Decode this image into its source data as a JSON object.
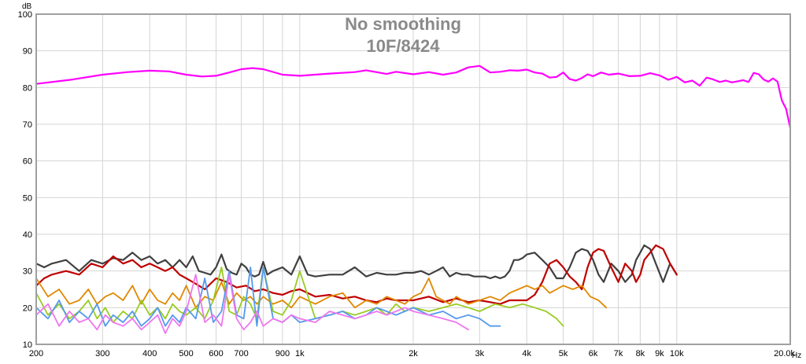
{
  "chart_data": {
    "type": "line",
    "title": "No smoothing",
    "subtitle": "10F/8424",
    "xlabel": "Hz",
    "ylabel": "dB",
    "xscale": "log",
    "xlim": [
      200,
      20000
    ],
    "ylim": [
      10,
      100
    ],
    "grid": true,
    "y_ticks": [
      "10",
      "20",
      "30",
      "40",
      "50",
      "60",
      "70",
      "80",
      "90",
      "100"
    ],
    "x_ticks": [
      {
        "v": 200,
        "label": "200"
      },
      {
        "v": 300,
        "label": "300"
      },
      {
        "v": 400,
        "label": "400"
      },
      {
        "v": 500,
        "label": "500"
      },
      {
        "v": 600,
        "label": "600"
      },
      {
        "v": 700,
        "label": "700"
      },
      {
        "v": 900,
        "label": "900"
      },
      {
        "v": 1000,
        "label": "1k"
      },
      {
        "v": 2000,
        "label": "2k"
      },
      {
        "v": 3000,
        "label": "3k"
      },
      {
        "v": 4000,
        "label": "4k"
      },
      {
        "v": 5000,
        "label": "5k"
      },
      {
        "v": 6000,
        "label": "6k"
      },
      {
        "v": 7000,
        "label": "7k"
      },
      {
        "v": 8000,
        "label": "8k"
      },
      {
        "v": 9000,
        "label": "9k"
      },
      {
        "v": 10000,
        "label": "10k"
      },
      {
        "v": 20000,
        "label": "20.0k"
      }
    ],
    "x_gridlines": [
      200,
      300,
      400,
      500,
      600,
      700,
      800,
      900,
      1000,
      2000,
      3000,
      4000,
      5000,
      6000,
      7000,
      8000,
      9000,
      10000,
      20000
    ],
    "series": [
      {
        "color": "#ff00ff",
        "x": [
          200,
          250,
          300,
          350,
          400,
          450,
          500,
          550,
          600,
          650,
          700,
          750,
          800,
          900,
          1000,
          1200,
          1400,
          1500,
          1700,
          1800,
          2000,
          2200,
          2400,
          2600,
          2800,
          3000,
          3200,
          3400,
          3600,
          3800,
          4000,
          4200,
          4400,
          4600,
          4800,
          5000,
          5200,
          5400,
          5600,
          5800,
          6000,
          6300,
          6600,
          7000,
          7500,
          8000,
          8500,
          9000,
          9500,
          10000,
          10500,
          11000,
          11500,
          12000,
          12500,
          13000,
          13500,
          14000,
          14500,
          15000,
          15500,
          16000,
          16500,
          17000,
          17500,
          18000,
          18500,
          19000,
          19500,
          20000
        ],
        "y": [
          81,
          82.2,
          83.5,
          84.2,
          84.6,
          84.4,
          83.5,
          83,
          83.2,
          84.1,
          85,
          85.3,
          85,
          83.5,
          83.2,
          83.8,
          84.2,
          84.7,
          83.7,
          84.3,
          83.6,
          84.2,
          83.5,
          84.1,
          85.5,
          85.9,
          84.1,
          84.3,
          84.7,
          84.6,
          84.9,
          84.1,
          83.8,
          82.7,
          82.9,
          84.1,
          82.3,
          81.9,
          82.6,
          83.6,
          83.1,
          84.1,
          83.5,
          83.8,
          83.1,
          83.2,
          83.9,
          83.3,
          82.1,
          82.9,
          81.4,
          81.9,
          80.5,
          82.7,
          82.2,
          81.5,
          81.9,
          81.4,
          81.7,
          82,
          81.5,
          84,
          83.6,
          82.2,
          81.6,
          82.5,
          81.6,
          76.5,
          74.2,
          69
        ]
      },
      {
        "color": "#404040",
        "x": [
          200,
          210,
          220,
          240,
          260,
          280,
          300,
          320,
          340,
          360,
          380,
          400,
          420,
          440,
          460,
          480,
          500,
          520,
          540,
          560,
          580,
          600,
          620,
          640,
          660,
          680,
          700,
          720,
          740,
          760,
          780,
          800,
          820,
          850,
          900,
          950,
          1000,
          1050,
          1100,
          1200,
          1300,
          1400,
          1500,
          1600,
          1700,
          1800,
          1900,
          2000,
          2100,
          2200,
          2300,
          2400,
          2500,
          2600,
          2700,
          2800,
          2900,
          3000,
          3100,
          3200,
          3300,
          3400,
          3500,
          3600,
          3700,
          3800,
          3900,
          4000,
          4200,
          4400,
          4600,
          4800,
          5000,
          5200,
          5400,
          5600,
          5800,
          6000,
          6200,
          6400,
          6700,
          7000,
          7300,
          7600,
          7800,
          8000,
          8200,
          8500,
          8800,
          9200,
          9600,
          10000
        ],
        "y": [
          32,
          31,
          32,
          33,
          30,
          33,
          32,
          33.5,
          33,
          35,
          33,
          34,
          32,
          33,
          31,
          33,
          31,
          34,
          30,
          29.5,
          29,
          31,
          34.5,
          30.5,
          29.5,
          29,
          32,
          31,
          29,
          28.5,
          29,
          32.5,
          29,
          30,
          31,
          29,
          34,
          29,
          28.5,
          29,
          29,
          31,
          28.5,
          29.5,
          29,
          29,
          29.5,
          29.5,
          30,
          29,
          30,
          31,
          28.5,
          29.5,
          29,
          29,
          28.5,
          28.5,
          28.5,
          28,
          28.5,
          28,
          28.5,
          30,
          33,
          33,
          33.5,
          34.5,
          35,
          33,
          31,
          28,
          28,
          31,
          35,
          36,
          35.5,
          33,
          29,
          27,
          32,
          30,
          27,
          29,
          33,
          35,
          37,
          36,
          32,
          27,
          32,
          29
        ]
      },
      {
        "color": "#c00000",
        "x": [
          200,
          210,
          220,
          240,
          260,
          280,
          300,
          320,
          340,
          360,
          380,
          400,
          420,
          440,
          460,
          480,
          500,
          520,
          540,
          560,
          600,
          640,
          680,
          720,
          760,
          800,
          850,
          900,
          950,
          1000,
          1100,
          1200,
          1300,
          1400,
          1500,
          1600,
          1700,
          1800,
          2000,
          2200,
          2400,
          2600,
          2800,
          3000,
          3200,
          3400,
          3600,
          3800,
          4000,
          4200,
          4400,
          4600,
          4800,
          5000,
          5200,
          5400,
          5600,
          5800,
          6000,
          6200,
          6400,
          6700,
          7000,
          7300,
          7600,
          7800,
          8000,
          8200,
          8500,
          8800,
          9200,
          9600,
          10000
        ],
        "y": [
          26,
          28,
          29,
          30,
          29,
          32,
          31,
          34,
          32,
          33,
          31,
          32,
          31,
          30,
          31,
          29,
          28,
          27,
          26,
          25,
          28,
          27,
          25.5,
          26,
          24.5,
          25,
          24,
          23.5,
          24.5,
          25,
          23,
          23.5,
          22.5,
          23,
          22,
          21.5,
          22.5,
          22,
          22,
          23,
          21.5,
          22.5,
          21.5,
          22,
          21.5,
          21,
          22,
          22,
          22,
          23.5,
          27,
          32,
          33,
          31,
          28.5,
          27,
          25,
          31,
          35,
          36,
          35.5,
          31,
          27,
          32,
          30,
          27,
          29,
          33,
          35,
          37,
          36,
          32,
          29
        ]
      },
      {
        "color": "#e08800",
        "x": [
          200,
          215,
          230,
          245,
          260,
          275,
          290,
          305,
          320,
          340,
          360,
          380,
          400,
          420,
          440,
          460,
          480,
          500,
          530,
          560,
          590,
          620,
          650,
          680,
          710,
          740,
          770,
          800,
          850,
          900,
          950,
          1000,
          1100,
          1200,
          1300,
          1350,
          1400,
          1450,
          1500,
          1600,
          1700,
          1800,
          1900,
          2000,
          2100,
          2200,
          2300,
          2400,
          2500,
          2600,
          2700,
          2800,
          3000,
          3200,
          3400,
          3600,
          3800,
          4000,
          4200,
          4400,
          4600,
          4800,
          5000,
          5300,
          5600,
          5900,
          6200,
          6500
        ],
        "y": [
          28,
          23,
          25,
          21,
          22,
          25,
          21,
          23,
          24,
          22,
          26,
          21,
          25,
          22,
          21,
          24,
          22,
          26,
          20,
          23,
          22,
          27,
          21,
          24,
          22,
          23,
          21,
          23,
          21,
          22,
          20,
          23,
          21,
          23,
          24,
          22,
          20,
          21,
          22,
          21,
          23,
          22,
          21,
          23,
          24,
          28,
          23,
          22,
          21,
          23,
          22,
          21,
          22,
          23,
          22,
          24,
          25,
          26,
          25,
          26,
          24,
          25,
          26,
          25,
          26,
          23,
          22,
          20
        ]
      },
      {
        "color": "#99cc22",
        "x": [
          200,
          215,
          230,
          245,
          260,
          275,
          290,
          305,
          320,
          340,
          360,
          380,
          400,
          420,
          440,
          460,
          480,
          500,
          530,
          560,
          590,
          620,
          650,
          680,
          710,
          740,
          770,
          800,
          850,
          900,
          950,
          1000,
          1100,
          1200,
          1300,
          1400,
          1500,
          1600,
          1700,
          1800,
          1900,
          2000,
          2200,
          2400,
          2600,
          2800,
          3000,
          3300,
          3600,
          3900,
          4200,
          4500,
          4800,
          5000
        ],
        "y": [
          24,
          18,
          21,
          17,
          19,
          22,
          17,
          20,
          16,
          19,
          17,
          22,
          18,
          20,
          17,
          21,
          19,
          18,
          20,
          17,
          22,
          31,
          19,
          18,
          23,
          21,
          17,
          31,
          19,
          18,
          22,
          30,
          17,
          18,
          19,
          18,
          19,
          20,
          18,
          21,
          19,
          20,
          19,
          20,
          21,
          20,
          19,
          21,
          20,
          21,
          20,
          19,
          17,
          15
        ]
      },
      {
        "color": "#5599ee",
        "x": [
          200,
          215,
          230,
          245,
          260,
          275,
          290,
          305,
          320,
          340,
          360,
          380,
          400,
          420,
          440,
          460,
          480,
          500,
          530,
          560,
          590,
          620,
          650,
          680,
          710,
          740,
          770,
          800,
          850,
          900,
          950,
          1000,
          1100,
          1200,
          1300,
          1400,
          1500,
          1600,
          1700,
          1800,
          1900,
          2000,
          2200,
          2400,
          2600,
          2800,
          3000,
          3200,
          3400
        ],
        "y": [
          20,
          17,
          22,
          16,
          19,
          17,
          21,
          15,
          18,
          16,
          19,
          15,
          17,
          20,
          15,
          18,
          16,
          20,
          17,
          28,
          16,
          19,
          30,
          18,
          17,
          31,
          15,
          31,
          17,
          16,
          18,
          16,
          17,
          18,
          19,
          17,
          18,
          20,
          19,
          18,
          19,
          20,
          18,
          19,
          17,
          18,
          17,
          15,
          15
        ]
      },
      {
        "color": "#ee77ee",
        "x": [
          200,
          215,
          230,
          245,
          260,
          275,
          290,
          305,
          320,
          340,
          360,
          380,
          400,
          420,
          440,
          460,
          480,
          500,
          530,
          560,
          590,
          620,
          650,
          680,
          710,
          740,
          770,
          800,
          850,
          900,
          950,
          1000,
          1100,
          1200,
          1300,
          1400,
          1500,
          1600,
          1700,
          1800,
          1900,
          2000,
          2200,
          2400,
          2600,
          2800
        ],
        "y": [
          18,
          21,
          15,
          19,
          16,
          17,
          14,
          18,
          16,
          15,
          17,
          14,
          16,
          18,
          13,
          17,
          15,
          19,
          29,
          16,
          18,
          15,
          29,
          17,
          14,
          16,
          19,
          15,
          17,
          16,
          18,
          17,
          16,
          19,
          18,
          17,
          18,
          19,
          18,
          19,
          20,
          19,
          18,
          17,
          16,
          14
        ]
      }
    ]
  }
}
